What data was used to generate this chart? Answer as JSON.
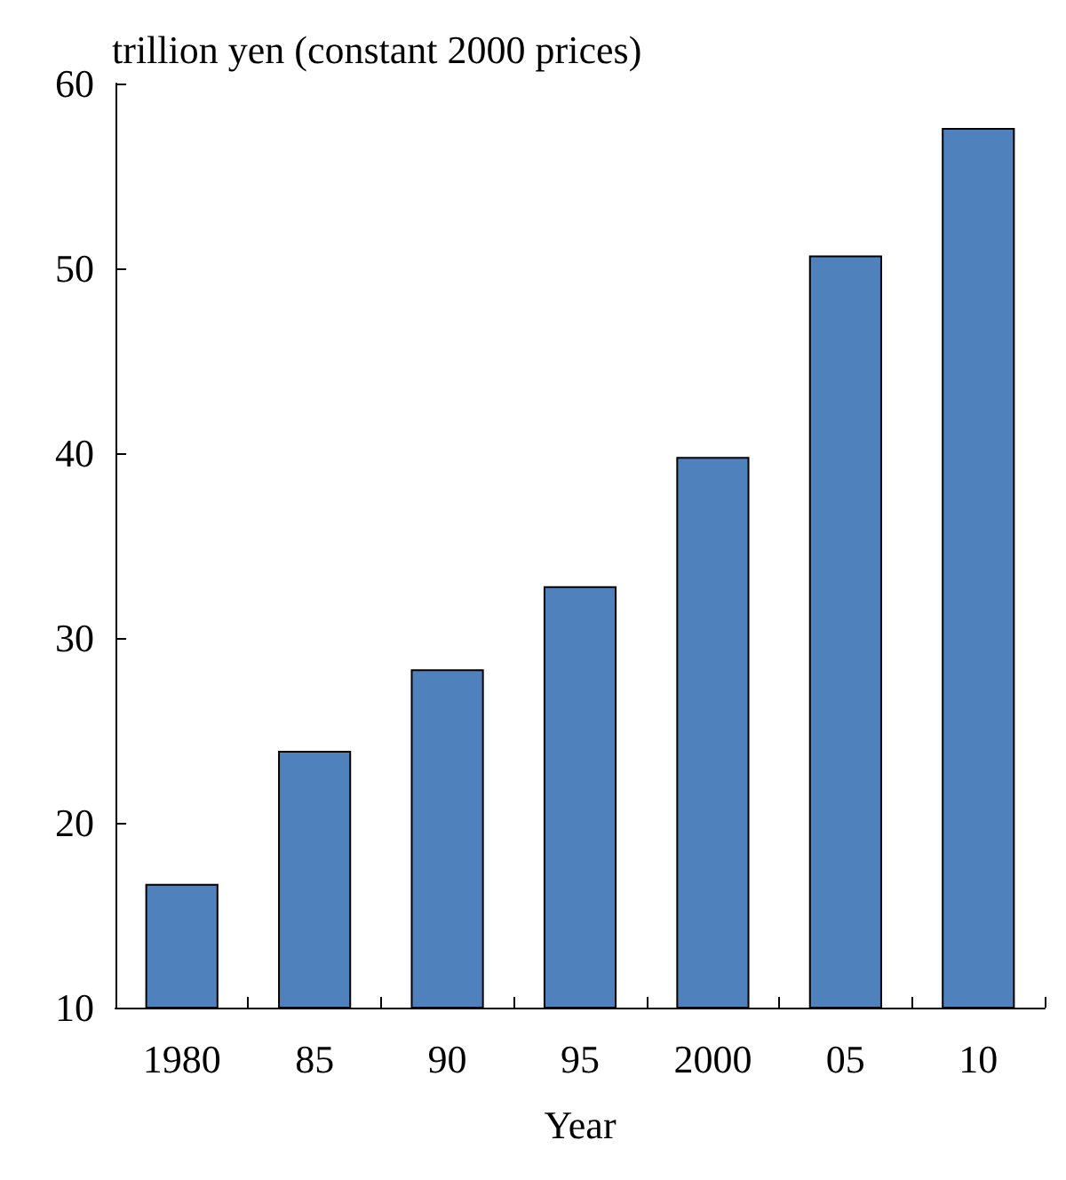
{
  "chart_data": {
    "type": "bar",
    "ylabel": "trillion yen (constant 2000 prices)",
    "xlabel": "Year",
    "categories": [
      "1980",
      "85",
      "90",
      "95",
      "2000",
      "05",
      "10"
    ],
    "values": [
      16.7,
      23.9,
      28.3,
      32.8,
      39.8,
      50.7,
      57.6
    ],
    "color": "#4f81bd",
    "ylim": [
      10,
      60
    ],
    "yticks": [
      10,
      20,
      30,
      40,
      50,
      60
    ],
    "grid": false
  }
}
